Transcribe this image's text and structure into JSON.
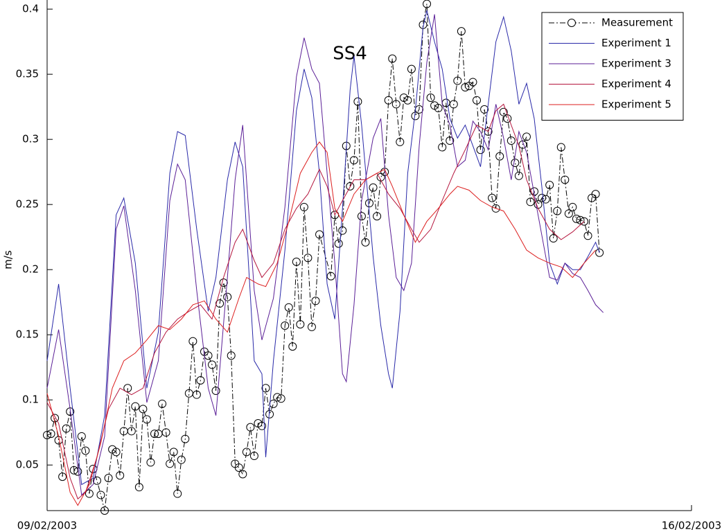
{
  "chart_data": {
    "type": "line",
    "title": "SS4",
    "ylabel": "m/s",
    "xlim": [
      0,
      168
    ],
    "xticks": [
      {
        "value": 0,
        "label": "09/02/2003"
      },
      {
        "value": 168,
        "label": "16/02/2003"
      }
    ],
    "ylim": [
      0.015,
      0.407
    ],
    "yticks": [
      0.05,
      0.1,
      0.15,
      0.2,
      0.25,
      0.3,
      0.35,
      0.4
    ],
    "legend": "upper right",
    "series": [
      {
        "name": "Measurement",
        "color": "#000000",
        "marker": "o",
        "linestyle": "dashdot",
        "x": [
          0,
          1,
          2,
          3,
          4,
          5,
          6,
          7,
          8,
          9,
          10,
          11,
          12,
          13,
          14,
          15,
          16,
          17,
          18,
          19,
          20,
          21,
          22,
          23,
          24,
          25,
          26,
          27,
          28,
          29,
          30,
          31,
          32,
          33,
          34,
          35,
          36,
          37,
          38,
          39,
          40,
          41,
          42,
          43,
          44,
          45,
          46,
          47,
          48,
          49,
          50,
          51,
          52,
          53,
          54,
          55,
          56,
          57,
          58,
          59,
          60,
          61,
          62,
          63,
          64,
          65,
          66,
          67,
          68,
          69,
          70,
          71,
          74,
          75,
          76,
          77,
          78,
          79,
          80,
          81,
          82,
          83,
          84,
          85,
          86,
          87,
          88,
          89,
          90,
          91,
          92,
          93,
          94,
          95,
          96,
          97,
          98,
          99,
          100,
          101,
          102,
          103,
          104,
          105,
          106,
          107,
          108,
          109,
          110,
          111,
          112,
          113,
          114,
          115,
          116,
          117,
          118,
          119,
          120,
          121,
          122,
          123,
          124,
          125,
          126,
          127,
          128,
          129,
          130,
          131,
          132,
          133,
          134,
          135,
          136,
          137,
          138,
          139,
          140,
          141,
          142,
          143,
          144
        ],
        "values": [
          0.073,
          0.074,
          0.086,
          0.069,
          0.041,
          0.078,
          0.091,
          0.046,
          0.045,
          0.072,
          0.061,
          0.028,
          0.047,
          0.038,
          0.027,
          0.015,
          0.04,
          0.062,
          0.06,
          0.042,
          0.076,
          0.109,
          0.076,
          0.095,
          0.033,
          0.093,
          0.085,
          0.052,
          0.074,
          0.074,
          0.097,
          0.075,
          0.051,
          0.06,
          0.028,
          0.054,
          0.07,
          0.105,
          0.145,
          0.104,
          0.115,
          0.137,
          0.134,
          0.127,
          0.107,
          0.174,
          0.19,
          0.179,
          0.134,
          0.051,
          0.048,
          0.043,
          0.06,
          0.079,
          0.057,
          0.082,
          0.08,
          0.109,
          0.089,
          0.097,
          0.102,
          0.101,
          0.157,
          0.171,
          0.141,
          0.206,
          0.158,
          0.248,
          0.209,
          0.156,
          0.176,
          0.227,
          0.195,
          0.242,
          0.22,
          0.23,
          0.295,
          0.264,
          0.284,
          0.329,
          0.241,
          0.221,
          0.251,
          0.263,
          0.241,
          0.271,
          0.275,
          0.33,
          0.362,
          0.327,
          0.298,
          0.332,
          0.33,
          0.354,
          0.318,
          0.323,
          0.388,
          0.404,
          0.332,
          0.326,
          0.324,
          0.294,
          0.328,
          0.299,
          0.327,
          0.345,
          0.383,
          0.34,
          0.341,
          0.344,
          0.33,
          0.292,
          0.323,
          0.306,
          0.255,
          0.247,
          0.287,
          0.321,
          0.316,
          0.299,
          0.282,
          0.272,
          0.296,
          0.302,
          0.252,
          0.26,
          0.25,
          0.255,
          0.254,
          0.265,
          0.224,
          0.245,
          0.294,
          0.269,
          0.243,
          0.248,
          0.239,
          0.238,
          0.237,
          0.226,
          0.255,
          0.258,
          0.213
        ]
      },
      {
        "name": "Experiment 1",
        "color": "#2828a8",
        "x": [
          0,
          3,
          6,
          9,
          12,
          15,
          18,
          20,
          23,
          26,
          29,
          32,
          34,
          36,
          39,
          42,
          44,
          47,
          49,
          51,
          54,
          56,
          57,
          59,
          62,
          65,
          67,
          69,
          71,
          73,
          75,
          77,
          79,
          80,
          82,
          85,
          87,
          89,
          90,
          92,
          94,
          96,
          98,
          99,
          101,
          103,
          105,
          107,
          109,
          111,
          113,
          115,
          117,
          119,
          121,
          123,
          125,
          127,
          129,
          131,
          133,
          135,
          137,
          139,
          141,
          143,
          144
        ],
        "values": [
          0.13,
          0.189,
          0.109,
          0.035,
          0.04,
          0.088,
          0.242,
          0.255,
          0.205,
          0.109,
          0.152,
          0.274,
          0.306,
          0.303,
          0.231,
          0.168,
          0.194,
          0.269,
          0.298,
          0.279,
          0.13,
          0.12,
          0.056,
          0.13,
          0.215,
          0.322,
          0.354,
          0.332,
          0.274,
          0.189,
          0.162,
          0.247,
          0.338,
          0.364,
          0.311,
          0.21,
          0.157,
          0.12,
          0.109,
          0.168,
          0.274,
          0.322,
          0.386,
          0.399,
          0.375,
          0.354,
          0.316,
          0.301,
          0.311,
          0.295,
          0.279,
          0.327,
          0.375,
          0.394,
          0.368,
          0.327,
          0.343,
          0.316,
          0.263,
          0.205,
          0.189,
          0.205,
          0.2,
          0.2,
          0.21,
          0.221,
          0.213
        ]
      },
      {
        "name": "Experiment 3",
        "color": "#5a1e96",
        "x": [
          0,
          3,
          6,
          9,
          12,
          15,
          18,
          20,
          23,
          26,
          29,
          32,
          34,
          36,
          39,
          42,
          44,
          47,
          49,
          51,
          54,
          56,
          59,
          62,
          65,
          67,
          69,
          71,
          73,
          75,
          77,
          78,
          80,
          82,
          85,
          87,
          89,
          91,
          93,
          95,
          97,
          99,
          101,
          103,
          105,
          107,
          109,
          111,
          113,
          115,
          117,
          119,
          121,
          123,
          125,
          127,
          129,
          131,
          133,
          135,
          137,
          139,
          141,
          143,
          145
        ],
        "values": [
          0.109,
          0.154,
          0.093,
          0.027,
          0.035,
          0.072,
          0.231,
          0.249,
          0.184,
          0.098,
          0.13,
          0.253,
          0.281,
          0.269,
          0.184,
          0.109,
          0.088,
          0.194,
          0.269,
          0.311,
          0.184,
          0.146,
          0.178,
          0.248,
          0.348,
          0.378,
          0.354,
          0.343,
          0.274,
          0.205,
          0.12,
          0.114,
          0.173,
          0.253,
          0.301,
          0.316,
          0.242,
          0.194,
          0.184,
          0.205,
          0.295,
          0.359,
          0.396,
          0.327,
          0.311,
          0.279,
          0.284,
          0.314,
          0.306,
          0.292,
          0.327,
          0.301,
          0.269,
          0.306,
          0.29,
          0.258,
          0.226,
          0.194,
          0.192,
          0.205,
          0.197,
          0.194,
          0.184,
          0.173,
          0.167
        ]
      },
      {
        "name": "Experiment 4",
        "color": "#b4143c",
        "x": [
          0,
          3,
          6,
          8,
          10,
          13,
          16,
          19,
          22,
          25,
          28,
          31,
          34,
          37,
          40,
          43,
          46,
          49,
          51,
          54,
          56,
          59,
          62,
          65,
          68,
          71,
          73,
          75,
          77,
          80,
          83,
          86,
          89,
          92,
          95,
          97,
          100,
          103,
          106,
          109,
          112,
          115,
          117,
          119,
          121,
          123,
          125,
          128,
          131,
          134,
          137,
          140
        ],
        "values": [
          0.098,
          0.082,
          0.04,
          0.024,
          0.029,
          0.056,
          0.093,
          0.109,
          0.104,
          0.109,
          0.136,
          0.152,
          0.162,
          0.168,
          0.173,
          0.162,
          0.194,
          0.221,
          0.231,
          0.207,
          0.194,
          0.205,
          0.231,
          0.247,
          0.258,
          0.277,
          0.264,
          0.242,
          0.253,
          0.269,
          0.269,
          0.274,
          0.258,
          0.247,
          0.231,
          0.221,
          0.231,
          0.253,
          0.274,
          0.292,
          0.311,
          0.306,
          0.322,
          0.327,
          0.311,
          0.295,
          0.269,
          0.247,
          0.231,
          0.223,
          0.229,
          0.237
        ]
      },
      {
        "name": "Experiment 5",
        "color": "#dc1e1e",
        "x": [
          0,
          3,
          6,
          8,
          11,
          14,
          17,
          20,
          23,
          26,
          29,
          32,
          35,
          38,
          41,
          44,
          47,
          50,
          52,
          55,
          57,
          60,
          63,
          66,
          69,
          71,
          73,
          75,
          77,
          80,
          83,
          86,
          88,
          90,
          93,
          96,
          99,
          102,
          105,
          107,
          110,
          113,
          116,
          119,
          122,
          125,
          128,
          131,
          134,
          137,
          140,
          143
        ],
        "values": [
          0.105,
          0.072,
          0.029,
          0.019,
          0.035,
          0.067,
          0.109,
          0.13,
          0.136,
          0.146,
          0.157,
          0.154,
          0.162,
          0.173,
          0.176,
          0.162,
          0.152,
          0.178,
          0.194,
          0.189,
          0.187,
          0.205,
          0.237,
          0.274,
          0.29,
          0.298,
          0.29,
          0.247,
          0.237,
          0.258,
          0.269,
          0.274,
          0.277,
          0.264,
          0.242,
          0.221,
          0.237,
          0.247,
          0.258,
          0.264,
          0.261,
          0.253,
          0.248,
          0.245,
          0.231,
          0.215,
          0.209,
          0.205,
          0.202,
          0.194,
          0.205,
          0.215
        ]
      }
    ]
  }
}
